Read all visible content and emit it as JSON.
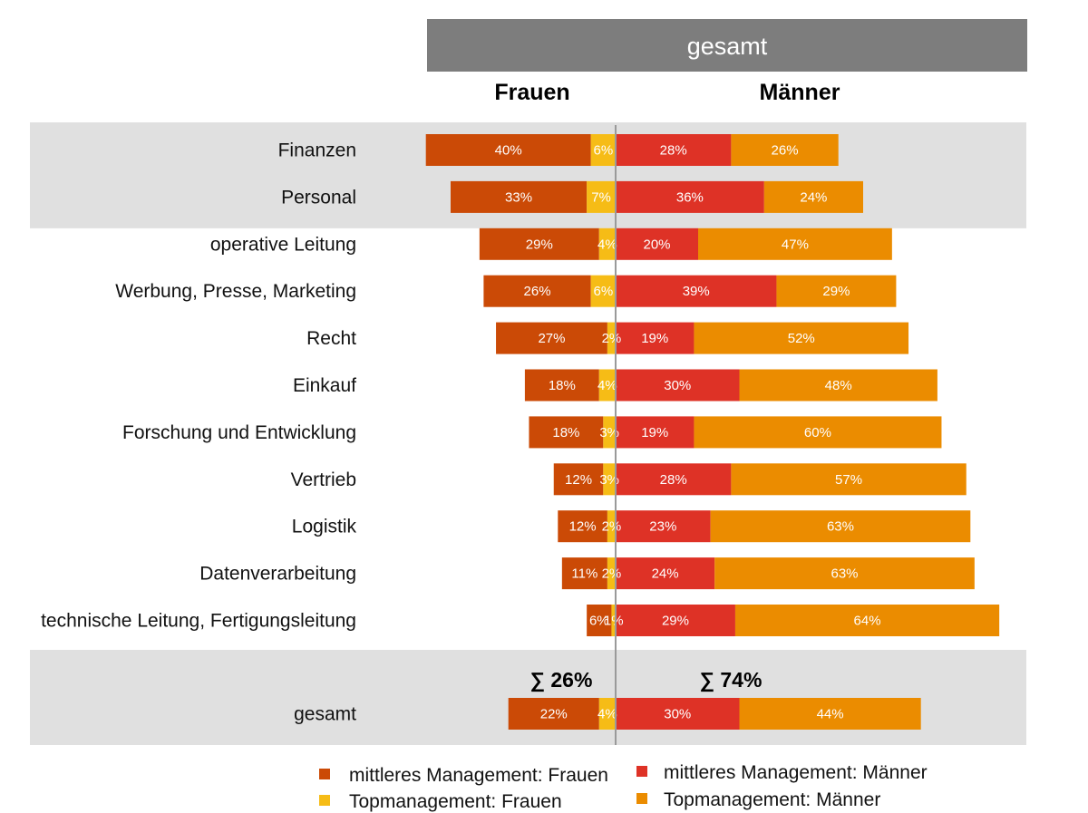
{
  "chart_data": {
    "type": "bar",
    "subtype": "diverging-stacked-horizontal",
    "title": "gesamt",
    "left_heading": "Frauen",
    "right_heading": "Männer",
    "categories": [
      "Finanzen",
      "Personal",
      "operative Leitung",
      "Werbung, Presse, Marketing",
      "Recht",
      "Einkauf",
      "Forschung und Entwicklung",
      "Vertrieb",
      "Logistik",
      "Datenverarbeitung",
      "technische Leitung, Fertigungsleitung"
    ],
    "series": [
      {
        "key": "fm",
        "name": "mittleres Management: Frauen",
        "side": "left",
        "values": [
          40,
          33,
          29,
          26,
          27,
          18,
          18,
          12,
          12,
          11,
          6
        ]
      },
      {
        "key": "ft",
        "name": "Topmanagement: Frauen",
        "side": "left",
        "values": [
          6,
          7,
          4,
          6,
          2,
          4,
          3,
          3,
          2,
          2,
          1
        ]
      },
      {
        "key": "mm",
        "name": "mittleres Management: Männer",
        "side": "right",
        "values": [
          28,
          36,
          20,
          39,
          19,
          30,
          19,
          28,
          23,
          24,
          29
        ]
      },
      {
        "key": "mt",
        "name": "Topmanagement: Männer",
        "side": "right",
        "values": [
          26,
          24,
          47,
          29,
          52,
          48,
          60,
          57,
          63,
          63,
          64
        ]
      }
    ],
    "total": {
      "label": "gesamt",
      "values": {
        "fm": 22,
        "ft": 4,
        "mm": 30,
        "mt": 44
      },
      "sum_frauen": "∑ 26%",
      "sum_maenner": "∑ 74%"
    },
    "highlighted_rows": [
      "Finanzen",
      "Personal"
    ],
    "value_suffix": "%",
    "legend_position": "bottom"
  },
  "colors": {
    "fm": "#CB4A06",
    "ft": "#F6BC16",
    "mm": "#DE3226",
    "mt": "#EB8C00",
    "title_bg": "#7D7D7D",
    "band": "#E0E0E0",
    "axis": "#9A9A9A"
  }
}
